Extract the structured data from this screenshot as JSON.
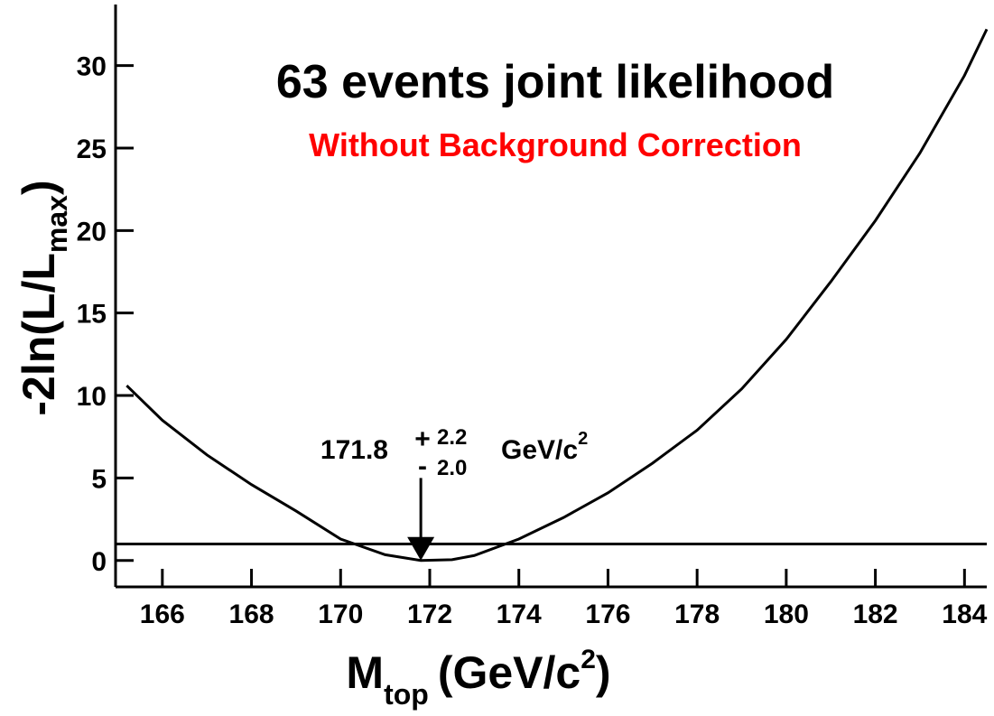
{
  "chart_data": {
    "type": "line",
    "title": "63 events joint likelihood",
    "subtitle": "Without Background Correction",
    "x_label": {
      "main": "M",
      "sub": "top",
      "rest": "(GeV/c",
      "sup": "2",
      "end": ")"
    },
    "y_label": {
      "main": "-2ln(L/L",
      "sub": "max",
      "end": ")"
    },
    "x": [
      165.2,
      166,
      167,
      168,
      169,
      170,
      171,
      171.8,
      172.5,
      173,
      174,
      175,
      176,
      177,
      178,
      179,
      180,
      181,
      182,
      183,
      184,
      184.5
    ],
    "values": [
      10.6,
      8.5,
      6.4,
      4.6,
      3.0,
      1.3,
      0.35,
      0,
      0.05,
      0.3,
      1.3,
      2.6,
      4.1,
      5.9,
      7.9,
      10.4,
      13.4,
      16.9,
      20.6,
      24.7,
      29.4,
      32.2
    ],
    "color": "#000000",
    "xlim": [
      164.95,
      184.5
    ],
    "ylim": [
      -1.6,
      33.7
    ],
    "xticks": [
      166,
      168,
      170,
      172,
      174,
      176,
      178,
      180,
      182,
      184
    ],
    "yticks": [
      0,
      5,
      10,
      15,
      20,
      25,
      30
    ],
    "hline": 1,
    "arrow": {
      "x": 171.8,
      "from": 5,
      "to": 0
    },
    "annotation": {
      "value": "171.8",
      "plus": "+",
      "up": "2.2",
      "minus": "-",
      "down": "2.0",
      "unit": "GeV/c",
      "unit_sup": "2"
    }
  }
}
